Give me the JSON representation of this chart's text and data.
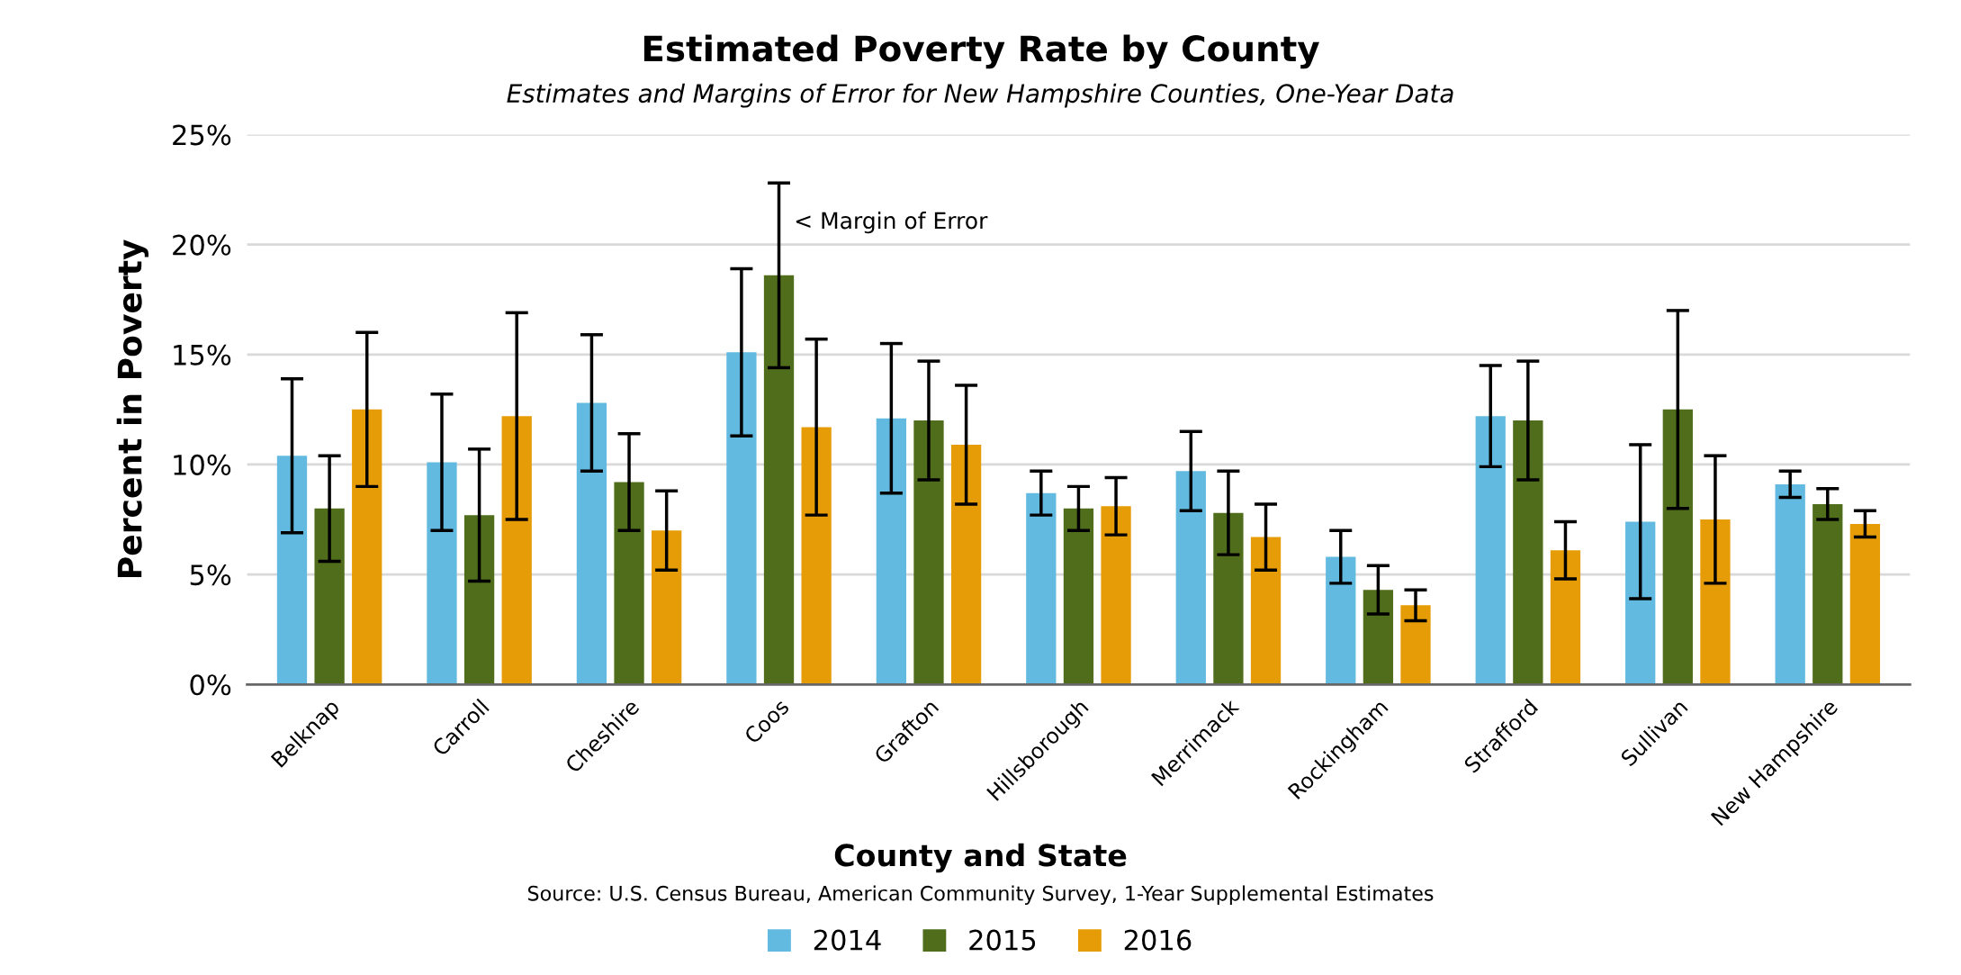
{
  "chart_data": {
    "type": "bar",
    "title": "Estimated Poverty Rate by County",
    "subtitle": "Estimates and Margins of Error for New Hampshire Counties, One-Year Data",
    "xlabel": "County and State",
    "ylabel": "Percent in Poverty",
    "categories": [
      "Belknap",
      "Carroll",
      "Cheshire",
      "Coos",
      "Grafton",
      "Hillsborough",
      "Merrimack",
      "Rockingham",
      "Strafford",
      "Sullivan",
      "New Hampshire"
    ],
    "series": [
      {
        "name": "2014",
        "color": "#63bae0",
        "values": [
          10.4,
          10.1,
          12.8,
          15.1,
          12.1,
          8.7,
          9.7,
          5.8,
          12.2,
          7.4,
          9.1
        ],
        "errors": [
          3.5,
          3.1,
          3.1,
          3.8,
          3.4,
          1.0,
          1.8,
          1.2,
          2.3,
          3.5,
          0.6
        ]
      },
      {
        "name": "2015",
        "color": "#4f6d1b",
        "values": [
          8.0,
          7.7,
          9.2,
          18.6,
          12.0,
          8.0,
          7.8,
          4.3,
          12.0,
          12.5,
          8.2
        ],
        "errors": [
          2.4,
          3.0,
          2.2,
          4.2,
          2.7,
          1.0,
          1.9,
          1.1,
          2.7,
          4.5,
          0.7
        ]
      },
      {
        "name": "2016",
        "color": "#e69c06",
        "values": [
          12.5,
          12.2,
          7.0,
          11.7,
          10.9,
          8.1,
          6.7,
          3.6,
          6.1,
          7.5,
          7.3
        ],
        "errors": [
          3.5,
          4.7,
          1.8,
          4.0,
          2.7,
          1.3,
          1.5,
          0.7,
          1.3,
          2.9,
          0.6
        ]
      }
    ],
    "ylim": [
      0,
      25
    ],
    "yticks": [
      {
        "value": 0,
        "label": "0%"
      },
      {
        "value": 5,
        "label": "5%"
      },
      {
        "value": 10,
        "label": "10%"
      },
      {
        "value": 15,
        "label": "15%"
      },
      {
        "value": 20,
        "label": "20%"
      },
      {
        "value": 25,
        "label": "25%"
      }
    ],
    "grid": "y",
    "legend": "bottom",
    "annotations": [
      {
        "text": "< Margin of Error",
        "x": "Coos",
        "y": 21
      },
      "Source: U.S. Census Bureau, American Community Survey, 1-Year Supplemental Estimates"
    ]
  }
}
